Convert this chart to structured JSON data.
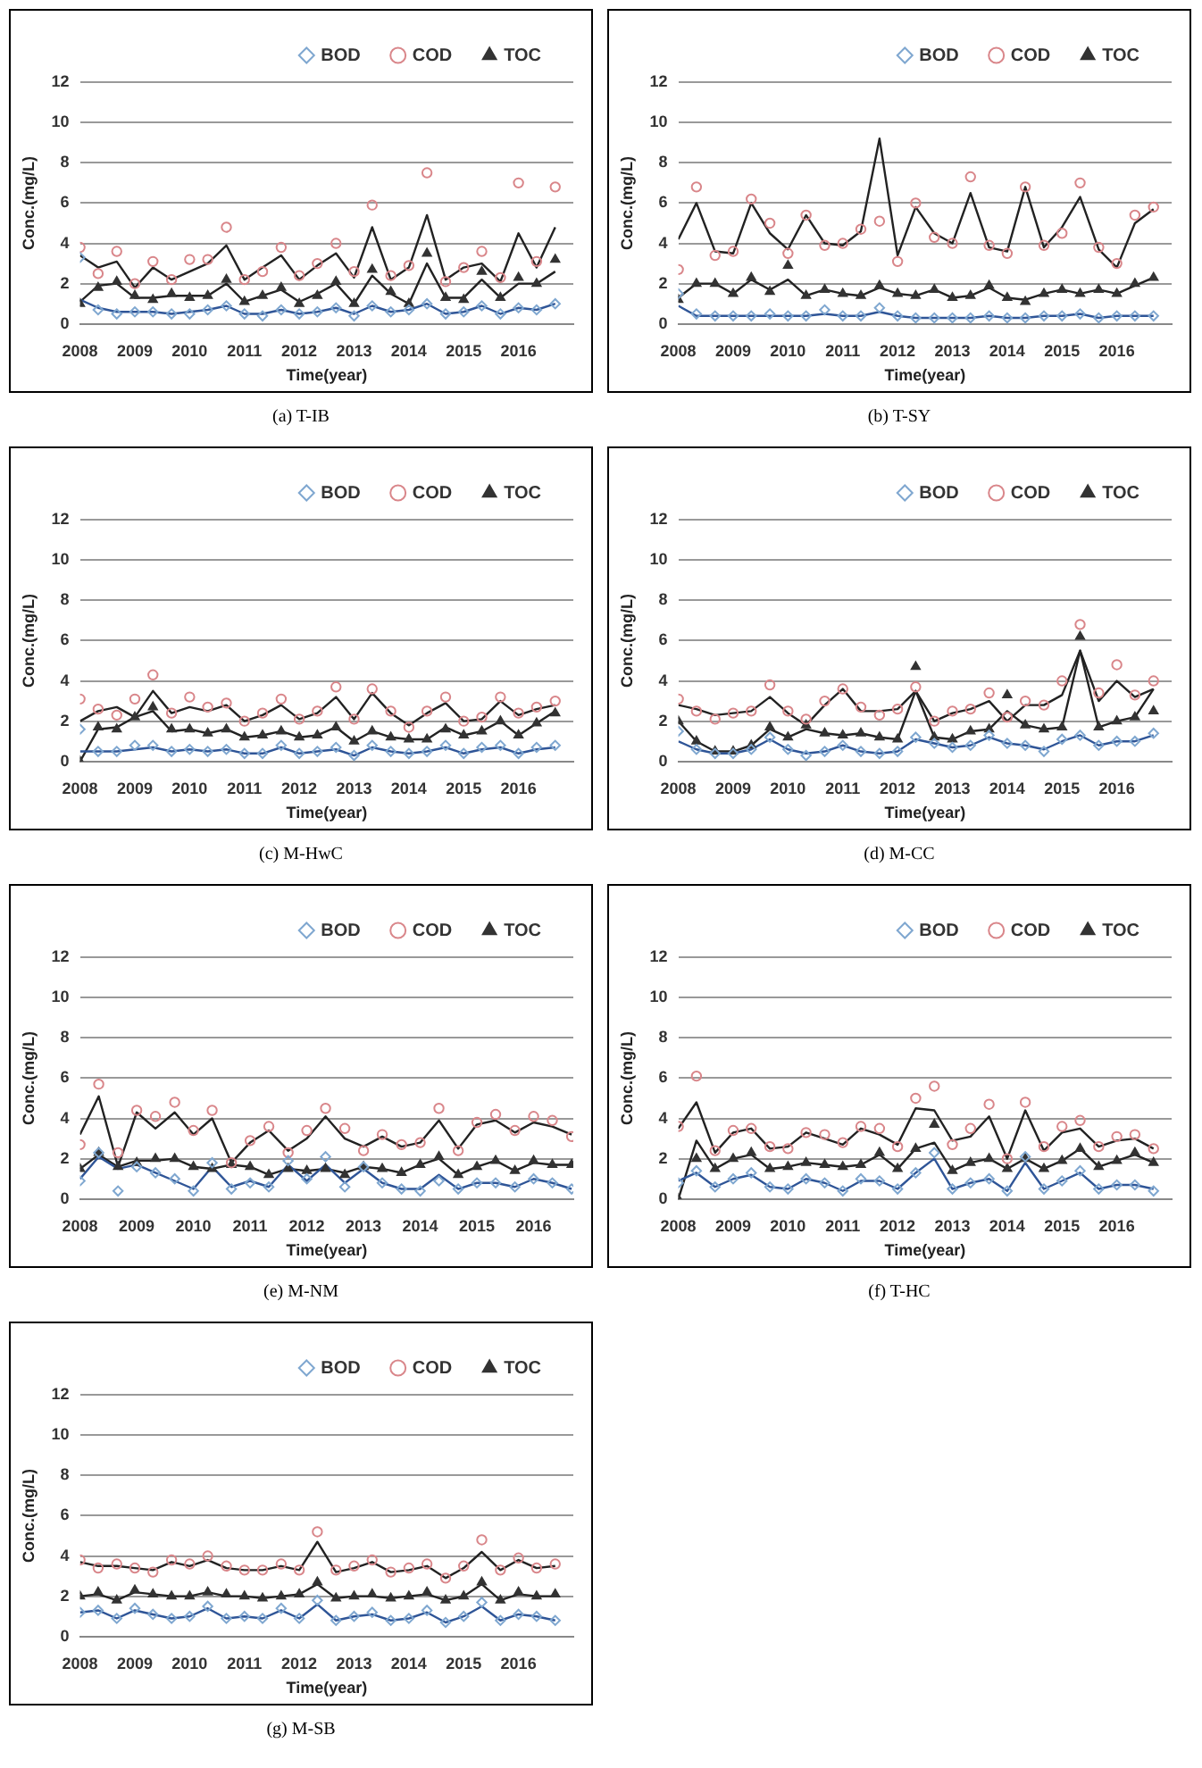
{
  "chart_data": [
    {
      "type": "scatter",
      "title": "(a)  T-IB",
      "xlabel": "Time(year)",
      "ylabel": "Conc.(mg/L)",
      "xlim": [
        2008,
        2017
      ],
      "xticks": [
        2008,
        2009,
        2010,
        2011,
        2012,
        2013,
        2014,
        2015,
        2016
      ],
      "ylim": [
        0,
        12
      ],
      "yticks": [
        0,
        2,
        4,
        6,
        8,
        10,
        12
      ],
      "grid": "y",
      "legend": "top",
      "x": [
        2008,
        2008.33,
        2008.67,
        2009,
        2009.33,
        2009.67,
        2010,
        2010.33,
        2010.67,
        2011,
        2011.33,
        2011.67,
        2012,
        2012.33,
        2012.67,
        2013,
        2013.33,
        2013.67,
        2014,
        2014.33,
        2014.67,
        2015,
        2015.33,
        2015.67,
        2016,
        2016.33,
        2016.67
      ],
      "series": [
        {
          "name": "BOD",
          "type": "scatter",
          "marker": "diamond",
          "color": "#7fa7d0",
          "values": [
            3.3,
            0.7,
            0.5,
            0.6,
            0.6,
            0.5,
            0.5,
            0.7,
            0.9,
            0.5,
            0.4,
            0.7,
            0.5,
            0.6,
            0.8,
            0.4,
            0.9,
            0.6,
            0.7,
            1.0,
            0.5,
            0.6,
            0.9,
            0.5,
            0.8,
            0.7,
            1.0
          ]
        },
        {
          "name": "COD",
          "type": "scatter",
          "marker": "circle",
          "color": "#d9868a",
          "values": [
            3.8,
            2.5,
            3.6,
            2.0,
            3.1,
            2.2,
            3.2,
            3.2,
            4.8,
            2.2,
            2.6,
            3.8,
            2.4,
            3.0,
            4.0,
            2.6,
            5.9,
            2.4,
            2.9,
            7.5,
            2.1,
            2.8,
            3.6,
            2.3,
            7.0,
            3.1,
            6.8
          ]
        },
        {
          "name": "TOC",
          "type": "scatter",
          "marker": "triangle",
          "color": "#333333",
          "values": [
            1.0,
            1.8,
            2.1,
            1.4,
            1.2,
            1.5,
            1.3,
            1.4,
            2.2,
            1.1,
            1.4,
            1.8,
            1.0,
            1.4,
            2.1,
            1.0,
            2.7,
            1.6,
            1.0,
            3.5,
            1.3,
            1.2,
            2.6,
            1.3,
            2.3,
            2.0,
            3.2
          ]
        },
        {
          "type": "line",
          "marker": "none",
          "color": "#2f5597",
          "values": [
            1.2,
            0.8,
            0.6,
            0.6,
            0.6,
            0.5,
            0.6,
            0.7,
            0.9,
            0.5,
            0.5,
            0.7,
            0.5,
            0.6,
            0.8,
            0.5,
            0.9,
            0.6,
            0.7,
            1.0,
            0.5,
            0.6,
            0.9,
            0.5,
            0.8,
            0.7,
            1.0
          ]
        },
        {
          "type": "line",
          "marker": "none",
          "color": "#222222",
          "values": [
            3.4,
            2.8,
            3.1,
            1.8,
            2.8,
            2.2,
            2.6,
            3.0,
            3.9,
            2.2,
            2.8,
            3.4,
            2.2,
            2.9,
            3.5,
            2.3,
            4.8,
            2.2,
            2.8,
            5.4,
            2.2,
            2.8,
            3.0,
            2.1,
            4.5,
            2.8,
            4.8
          ]
        },
        {
          "type": "line",
          "marker": "none",
          "color": "#222222",
          "values": [
            1.1,
            1.9,
            2.0,
            1.3,
            1.3,
            1.4,
            1.4,
            1.4,
            2.0,
            1.1,
            1.4,
            1.7,
            1.1,
            1.5,
            2.0,
            1.0,
            2.4,
            1.5,
            1.0,
            3.0,
            1.3,
            1.3,
            2.2,
            1.3,
            2.0,
            2.0,
            2.6
          ]
        }
      ]
    },
    {
      "type": "scatter",
      "title": "(b)  T-SY",
      "xlabel": "Time(year)",
      "ylabel": "Conc.(mg/L)",
      "xlim": [
        2008,
        2017
      ],
      "xticks": [
        2008,
        2009,
        2010,
        2011,
        2012,
        2013,
        2014,
        2015,
        2016
      ],
      "ylim": [
        0,
        12
      ],
      "yticks": [
        0,
        2,
        4,
        6,
        8,
        10,
        12
      ],
      "grid": "y",
      "legend": "top",
      "x": [
        2008,
        2008.33,
        2008.67,
        2009,
        2009.33,
        2009.67,
        2010,
        2010.33,
        2010.67,
        2011,
        2011.33,
        2011.67,
        2012,
        2012.33,
        2012.67,
        2013,
        2013.33,
        2013.67,
        2014,
        2014.33,
        2014.67,
        2015,
        2015.33,
        2015.67,
        2016,
        2016.33,
        2016.67
      ],
      "series": [
        {
          "name": "BOD",
          "type": "scatter",
          "marker": "diamond",
          "color": "#7fa7d0",
          "values": [
            1.5,
            0.5,
            0.4,
            0.4,
            0.4,
            0.5,
            0.4,
            0.4,
            0.7,
            0.4,
            0.4,
            0.8,
            0.4,
            0.3,
            0.3,
            0.3,
            0.3,
            0.4,
            0.3,
            0.3,
            0.4,
            0.4,
            0.5,
            0.3,
            0.4,
            0.4,
            0.4
          ]
        },
        {
          "name": "COD",
          "type": "scatter",
          "marker": "circle",
          "color": "#d9868a",
          "values": [
            2.7,
            6.8,
            3.4,
            3.6,
            6.2,
            5.0,
            3.5,
            5.4,
            3.9,
            4.0,
            4.7,
            5.1,
            3.1,
            6.0,
            4.3,
            4.0,
            7.3,
            3.9,
            3.5,
            6.8,
            3.9,
            4.5,
            7.0,
            3.8,
            3.0,
            5.4,
            5.8
          ]
        },
        {
          "name": "TOC",
          "type": "scatter",
          "marker": "triangle",
          "color": "#333333",
          "values": [
            1.2,
            2.0,
            2.0,
            1.5,
            2.3,
            1.6,
            2.9,
            1.4,
            1.7,
            1.5,
            1.4,
            1.9,
            1.5,
            1.4,
            1.7,
            1.3,
            1.4,
            1.9,
            1.3,
            1.1,
            1.5,
            1.7,
            1.5,
            1.7,
            1.5,
            2.0,
            2.3
          ]
        },
        {
          "type": "line",
          "marker": "none",
          "color": "#2f5597",
          "values": [
            0.9,
            0.4,
            0.4,
            0.4,
            0.4,
            0.4,
            0.4,
            0.4,
            0.5,
            0.4,
            0.4,
            0.6,
            0.4,
            0.3,
            0.3,
            0.3,
            0.3,
            0.4,
            0.3,
            0.3,
            0.4,
            0.4,
            0.5,
            0.3,
            0.4,
            0.4,
            0.4
          ]
        },
        {
          "type": "line",
          "marker": "none",
          "color": "#222222",
          "values": [
            4.2,
            6.0,
            3.6,
            3.5,
            6.0,
            4.5,
            3.7,
            5.4,
            4.0,
            3.9,
            4.6,
            9.2,
            3.4,
            5.8,
            4.5,
            4.0,
            6.5,
            3.8,
            3.6,
            6.8,
            3.8,
            4.8,
            6.3,
            3.7,
            2.8,
            5.0,
            5.7
          ]
        },
        {
          "type": "line",
          "marker": "none",
          "color": "#222222",
          "values": [
            1.3,
            2.0,
            2.0,
            1.5,
            2.2,
            1.7,
            2.2,
            1.4,
            1.7,
            1.5,
            1.4,
            1.8,
            1.5,
            1.4,
            1.7,
            1.3,
            1.4,
            1.8,
            1.3,
            1.2,
            1.5,
            1.7,
            1.5,
            1.7,
            1.5,
            1.9,
            2.3
          ]
        }
      ]
    },
    {
      "type": "scatter",
      "title": "(c)  M-HwC",
      "xlabel": "Time(year)",
      "ylabel": "Conc.(mg/L)",
      "xlim": [
        2008,
        2017
      ],
      "xticks": [
        2008,
        2009,
        2010,
        2011,
        2012,
        2013,
        2014,
        2015,
        2016
      ],
      "ylim": [
        0,
        12
      ],
      "yticks": [
        0,
        2,
        4,
        6,
        8,
        10,
        12
      ],
      "grid": "y",
      "legend": "top",
      "x": [
        2008,
        2008.33,
        2008.67,
        2009,
        2009.33,
        2009.67,
        2010,
        2010.33,
        2010.67,
        2011,
        2011.33,
        2011.67,
        2012,
        2012.33,
        2012.67,
        2013,
        2013.33,
        2013.67,
        2014,
        2014.33,
        2014.67,
        2015,
        2015.33,
        2015.67,
        2016,
        2016.33,
        2016.67
      ],
      "series": [
        {
          "name": "BOD",
          "type": "scatter",
          "marker": "diamond",
          "color": "#7fa7d0",
          "values": [
            1.6,
            0.5,
            0.5,
            0.8,
            0.8,
            0.5,
            0.6,
            0.5,
            0.6,
            0.4,
            0.4,
            0.8,
            0.4,
            0.5,
            0.7,
            0.3,
            0.8,
            0.5,
            0.4,
            0.5,
            0.8,
            0.4,
            0.7,
            0.8,
            0.4,
            0.7,
            0.8
          ]
        },
        {
          "name": "COD",
          "type": "scatter",
          "marker": "circle",
          "color": "#d9868a",
          "values": [
            3.1,
            2.6,
            2.3,
            3.1,
            4.3,
            2.4,
            3.2,
            2.7,
            2.9,
            2.0,
            2.4,
            3.1,
            2.1,
            2.5,
            3.7,
            2.1,
            3.6,
            2.5,
            1.7,
            2.5,
            3.2,
            2.0,
            2.2,
            3.2,
            2.4,
            2.7,
            3.0
          ]
        },
        {
          "name": "TOC",
          "type": "scatter",
          "marker": "triangle",
          "color": "#333333",
          "values": [
            0,
            1.7,
            1.6,
            2.2,
            2.7,
            1.6,
            1.6,
            1.4,
            1.6,
            1.2,
            1.3,
            1.5,
            1.2,
            1.3,
            1.7,
            1.0,
            1.5,
            1.2,
            1.1,
            1.1,
            1.6,
            1.3,
            1.5,
            2.0,
            1.3,
            1.9,
            2.4
          ]
        },
        {
          "type": "line",
          "marker": "none",
          "color": "#2f5597",
          "values": [
            0.5,
            0.5,
            0.5,
            0.6,
            0.7,
            0.5,
            0.6,
            0.5,
            0.6,
            0.4,
            0.4,
            0.7,
            0.4,
            0.5,
            0.6,
            0.3,
            0.7,
            0.5,
            0.4,
            0.5,
            0.7,
            0.4,
            0.6,
            0.7,
            0.4,
            0.6,
            0.7
          ]
        },
        {
          "type": "line",
          "marker": "none",
          "color": "#222222",
          "values": [
            2.0,
            2.5,
            2.7,
            2.2,
            3.5,
            2.4,
            2.7,
            2.5,
            2.8,
            2.0,
            2.3,
            2.8,
            2.1,
            2.4,
            3.2,
            2.1,
            3.4,
            2.4,
            1.8,
            2.4,
            2.9,
            2.0,
            2.1,
            3.0,
            2.3,
            2.6,
            2.8
          ]
        },
        {
          "type": "line",
          "marker": "none",
          "color": "#222222",
          "values": [
            0,
            1.6,
            1.7,
            2.2,
            2.5,
            1.5,
            1.6,
            1.4,
            1.6,
            1.2,
            1.3,
            1.5,
            1.2,
            1.3,
            1.7,
            1.0,
            1.5,
            1.2,
            1.1,
            1.1,
            1.7,
            1.3,
            1.5,
            2.0,
            1.3,
            1.9,
            2.5
          ]
        }
      ]
    },
    {
      "type": "scatter",
      "title": "(d)  M-CC",
      "xlabel": "Time(year)",
      "ylabel": "Conc.(mg/L)",
      "xlim": [
        2008,
        2017
      ],
      "xticks": [
        2008,
        2009,
        2010,
        2011,
        2012,
        2013,
        2014,
        2015,
        2016
      ],
      "ylim": [
        0,
        12
      ],
      "yticks": [
        0,
        2,
        4,
        6,
        8,
        10,
        12
      ],
      "grid": "y",
      "legend": "top",
      "x": [
        2008,
        2008.33,
        2008.67,
        2009,
        2009.33,
        2009.67,
        2010,
        2010.33,
        2010.67,
        2011,
        2011.33,
        2011.67,
        2012,
        2012.33,
        2012.67,
        2013,
        2013.33,
        2013.67,
        2014,
        2014.33,
        2014.67,
        2015,
        2015.33,
        2015.67,
        2016,
        2016.33,
        2016.67
      ],
      "series": [
        {
          "name": "BOD",
          "type": "scatter",
          "marker": "diamond",
          "color": "#7fa7d0",
          "values": [
            1.5,
            0.6,
            0.4,
            0.4,
            0.6,
            1.2,
            0.6,
            0.3,
            0.5,
            0.8,
            0.5,
            0.4,
            0.5,
            1.2,
            0.9,
            0.7,
            0.8,
            1.3,
            0.9,
            0.8,
            0.5,
            1.1,
            1.3,
            0.8,
            1.0,
            1.0,
            1.4
          ]
        },
        {
          "name": "COD",
          "type": "scatter",
          "marker": "circle",
          "color": "#d9868a",
          "values": [
            3.1,
            2.5,
            2.1,
            2.4,
            2.5,
            3.8,
            2.5,
            2.1,
            3.0,
            3.6,
            2.7,
            2.3,
            2.6,
            3.7,
            2.0,
            2.5,
            2.6,
            3.4,
            2.2,
            3.0,
            2.8,
            4.0,
            6.8,
            3.4,
            4.8,
            3.3,
            4.0
          ]
        },
        {
          "name": "TOC",
          "type": "scatter",
          "marker": "triangle",
          "color": "#333333",
          "values": [
            2.0,
            1.0,
            0.5,
            0.5,
            0.8,
            1.7,
            1.2,
            1.8,
            1.4,
            1.3,
            1.4,
            1.2,
            1.1,
            4.7,
            1.2,
            1.1,
            1.5,
            1.6,
            3.3,
            1.8,
            1.6,
            1.7,
            6.2,
            1.7,
            2.0,
            2.2,
            2.5
          ]
        },
        {
          "type": "line",
          "marker": "none",
          "color": "#2f5597",
          "values": [
            1.0,
            0.6,
            0.4,
            0.4,
            0.6,
            1.1,
            0.6,
            0.4,
            0.5,
            0.8,
            0.5,
            0.4,
            0.5,
            1.1,
            0.9,
            0.7,
            0.8,
            1.2,
            0.9,
            0.8,
            0.6,
            1.0,
            1.3,
            0.8,
            1.0,
            1.0,
            1.3
          ]
        },
        {
          "type": "line",
          "marker": "none",
          "color": "#222222",
          "values": [
            2.8,
            2.6,
            2.3,
            2.4,
            2.5,
            3.2,
            2.4,
            1.8,
            2.8,
            3.6,
            2.5,
            2.5,
            2.6,
            3.5,
            2.0,
            2.4,
            2.6,
            3.0,
            2.0,
            2.8,
            2.8,
            3.3,
            5.5,
            3.0,
            4.0,
            3.2,
            3.6
          ]
        },
        {
          "type": "line",
          "marker": "none",
          "color": "#222222",
          "values": [
            2.0,
            1.0,
            0.5,
            0.5,
            0.8,
            1.6,
            1.2,
            1.6,
            1.4,
            1.3,
            1.4,
            1.2,
            1.1,
            3.5,
            1.2,
            1.1,
            1.5,
            1.6,
            2.5,
            1.8,
            1.6,
            1.7,
            5.5,
            1.7,
            2.0,
            2.2,
            3.6
          ]
        }
      ]
    },
    {
      "type": "scatter",
      "title": "(e)  M-NM",
      "xlabel": "Time(year)",
      "ylabel": "Conc.(mg/L)",
      "xlim": [
        2008,
        2016.7
      ],
      "xticks": [
        2008,
        2009,
        2010,
        2011,
        2012,
        2013,
        2014,
        2015,
        2016
      ],
      "ylim": [
        0,
        12
      ],
      "yticks": [
        0,
        2,
        4,
        6,
        8,
        10,
        12
      ],
      "grid": "y",
      "legend": "top",
      "x": [
        2008,
        2008.33,
        2008.67,
        2009,
        2009.33,
        2009.67,
        2010,
        2010.33,
        2010.67,
        2011,
        2011.33,
        2011.67,
        2012,
        2012.33,
        2012.67,
        2013,
        2013.33,
        2013.67,
        2014,
        2014.33,
        2014.67,
        2015,
        2015.33,
        2015.67,
        2016,
        2016.33,
        2016.67
      ],
      "series": [
        {
          "name": "BOD",
          "type": "scatter",
          "marker": "diamond",
          "color": "#7fa7d0",
          "values": [
            0.9,
            2.3,
            0.4,
            1.6,
            1.3,
            1.0,
            0.4,
            1.8,
            0.5,
            0.8,
            0.6,
            1.9,
            1.0,
            2.1,
            0.6,
            1.6,
            0.8,
            0.5,
            0.4,
            0.9,
            0.5,
            0.8,
            0.8,
            0.6,
            1.0,
            0.8,
            0.5
          ]
        },
        {
          "name": "COD",
          "type": "scatter",
          "marker": "circle",
          "color": "#d9868a",
          "values": [
            2.7,
            5.7,
            2.3,
            4.4,
            4.1,
            4.8,
            3.4,
            4.4,
            1.8,
            2.9,
            3.6,
            2.3,
            3.4,
            4.5,
            3.5,
            2.4,
            3.2,
            2.7,
            2.8,
            4.5,
            2.4,
            3.8,
            4.2,
            3.4,
            4.1,
            3.9,
            3.1
          ]
        },
        {
          "name": "TOC",
          "type": "scatter",
          "marker": "triangle",
          "color": "#333333",
          "values": [
            1.5,
            2.3,
            1.6,
            1.8,
            2.0,
            2.0,
            1.6,
            1.5,
            1.7,
            1.6,
            1.2,
            1.5,
            1.4,
            1.5,
            1.2,
            1.6,
            1.5,
            1.3,
            1.7,
            2.1,
            1.2,
            1.6,
            1.9,
            1.4,
            1.9,
            1.7,
            1.7
          ]
        },
        {
          "type": "line",
          "marker": "none",
          "color": "#2f5597",
          "values": [
            1.0,
            2.1,
            1.5,
            1.7,
            1.3,
            0.9,
            0.5,
            1.6,
            0.6,
            0.9,
            0.6,
            1.7,
            0.9,
            1.7,
            0.8,
            1.5,
            0.8,
            0.5,
            0.5,
            1.2,
            0.5,
            0.8,
            0.8,
            0.6,
            1.0,
            0.8,
            0.5
          ]
        },
        {
          "type": "line",
          "marker": "none",
          "color": "#222222",
          "values": [
            3.2,
            5.1,
            1.6,
            4.3,
            3.5,
            4.3,
            3.2,
            4.0,
            1.8,
            2.8,
            3.4,
            2.4,
            3.0,
            4.1,
            3.0,
            2.6,
            3.1,
            2.6,
            2.8,
            3.9,
            2.5,
            3.7,
            3.9,
            3.3,
            3.8,
            3.6,
            3.2
          ]
        },
        {
          "type": "line",
          "marker": "none",
          "color": "#222222",
          "values": [
            1.5,
            2.2,
            1.6,
            1.9,
            1.9,
            2.0,
            1.6,
            1.5,
            1.7,
            1.6,
            1.2,
            1.5,
            1.4,
            1.5,
            1.3,
            1.6,
            1.5,
            1.3,
            1.7,
            2.0,
            1.2,
            1.6,
            1.9,
            1.4,
            1.8,
            1.7,
            1.7
          ]
        }
      ]
    },
    {
      "type": "scatter",
      "title": "(f)  T-HC",
      "xlabel": "Time(year)",
      "ylabel": "Conc.(mg/L)",
      "xlim": [
        2008,
        2017
      ],
      "xticks": [
        2008,
        2009,
        2010,
        2011,
        2012,
        2013,
        2014,
        2015,
        2016
      ],
      "ylim": [
        0,
        12
      ],
      "yticks": [
        0,
        2,
        4,
        6,
        8,
        10,
        12
      ],
      "grid": "y",
      "legend": "top",
      "x": [
        2008,
        2008.33,
        2008.67,
        2009,
        2009.33,
        2009.67,
        2010,
        2010.33,
        2010.67,
        2011,
        2011.33,
        2011.67,
        2012,
        2012.33,
        2012.67,
        2013,
        2013.33,
        2013.67,
        2014,
        2014.33,
        2014.67,
        2015,
        2015.33,
        2015.67,
        2016,
        2016.33,
        2016.67
      ],
      "series": [
        {
          "name": "BOD",
          "type": "scatter",
          "marker": "diamond",
          "color": "#7fa7d0",
          "values": [
            0.8,
            1.4,
            0.6,
            1.0,
            1.3,
            0.6,
            0.5,
            1.0,
            0.8,
            0.4,
            1.0,
            0.9,
            0.5,
            1.3,
            2.3,
            0.5,
            0.8,
            1.0,
            0.4,
            2.1,
            0.5,
            0.9,
            1.4,
            0.5,
            0.7,
            0.7,
            0.4
          ]
        },
        {
          "name": "COD",
          "type": "scatter",
          "marker": "circle",
          "color": "#d9868a",
          "values": [
            3.6,
            6.1,
            2.4,
            3.4,
            3.5,
            2.6,
            2.5,
            3.3,
            3.2,
            2.8,
            3.6,
            3.5,
            2.6,
            5.0,
            5.6,
            2.7,
            3.5,
            4.7,
            2.0,
            4.8,
            2.6,
            3.6,
            3.9,
            2.6,
            3.1,
            3.2,
            2.5
          ]
        },
        {
          "name": "TOC",
          "type": "scatter",
          "marker": "triangle",
          "color": "#333333",
          "values": [
            0,
            2.0,
            1.5,
            2.0,
            2.3,
            1.5,
            1.6,
            1.8,
            1.7,
            1.6,
            1.7,
            2.3,
            1.5,
            2.5,
            3.7,
            1.4,
            1.8,
            2.0,
            1.5,
            2.0,
            1.5,
            1.9,
            2.5,
            1.6,
            1.9,
            2.3,
            1.8
          ]
        },
        {
          "type": "line",
          "marker": "none",
          "color": "#2f5597",
          "values": [
            0.9,
            1.3,
            0.6,
            1.0,
            1.2,
            0.6,
            0.5,
            1.0,
            0.8,
            0.4,
            0.9,
            0.9,
            0.5,
            1.3,
            2.0,
            0.5,
            0.8,
            1.0,
            0.4,
            1.8,
            0.5,
            0.9,
            1.3,
            0.5,
            0.7,
            0.7,
            0.5
          ]
        },
        {
          "type": "line",
          "marker": "none",
          "color": "#222222",
          "values": [
            3.5,
            4.8,
            2.3,
            3.3,
            3.5,
            2.5,
            2.6,
            3.3,
            3.0,
            2.7,
            3.5,
            3.2,
            2.7,
            4.5,
            4.4,
            2.9,
            3.1,
            4.1,
            2.0,
            4.4,
            2.4,
            3.3,
            3.5,
            2.6,
            2.9,
            3.0,
            2.5
          ]
        },
        {
          "type": "line",
          "marker": "none",
          "color": "#222222",
          "values": [
            0,
            2.9,
            1.5,
            2.0,
            2.2,
            1.5,
            1.6,
            1.8,
            1.7,
            1.6,
            1.7,
            2.2,
            1.5,
            2.5,
            2.8,
            1.4,
            1.8,
            2.0,
            1.5,
            2.0,
            1.5,
            1.9,
            2.5,
            1.6,
            1.9,
            2.2,
            1.8
          ]
        }
      ]
    },
    {
      "type": "scatter",
      "title": "(g)  M-SB",
      "xlabel": "Time(year)",
      "ylabel": "Conc.(mg/L)",
      "xlim": [
        2008,
        2017
      ],
      "xticks": [
        2008,
        2009,
        2010,
        2011,
        2012,
        2013,
        2014,
        2015,
        2016
      ],
      "ylim": [
        0,
        12
      ],
      "yticks": [
        0,
        2,
        4,
        6,
        8,
        10,
        12
      ],
      "grid": "y",
      "legend": "top",
      "x": [
        2008,
        2008.33,
        2008.67,
        2009,
        2009.33,
        2009.67,
        2010,
        2010.33,
        2010.67,
        2011,
        2011.33,
        2011.67,
        2012,
        2012.33,
        2012.67,
        2013,
        2013.33,
        2013.67,
        2014,
        2014.33,
        2014.67,
        2015,
        2015.33,
        2015.67,
        2016,
        2016.33,
        2016.67
      ],
      "series": [
        {
          "name": "BOD",
          "type": "scatter",
          "marker": "diamond",
          "color": "#7fa7d0",
          "values": [
            1.2,
            1.3,
            0.9,
            1.4,
            1.1,
            0.9,
            1.0,
            1.5,
            0.9,
            1.0,
            0.9,
            1.4,
            0.9,
            1.8,
            0.8,
            1.0,
            1.2,
            0.8,
            0.9,
            1.3,
            0.7,
            1.0,
            1.7,
            0.8,
            1.1,
            1.0,
            0.8
          ]
        },
        {
          "name": "COD",
          "type": "scatter",
          "marker": "circle",
          "color": "#d9868a",
          "values": [
            3.8,
            3.4,
            3.6,
            3.4,
            3.2,
            3.8,
            3.6,
            4.0,
            3.5,
            3.3,
            3.3,
            3.6,
            3.3,
            5.2,
            3.3,
            3.5,
            3.8,
            3.2,
            3.4,
            3.6,
            2.9,
            3.5,
            4.8,
            3.3,
            3.9,
            3.4,
            3.6
          ]
        },
        {
          "name": "TOC",
          "type": "scatter",
          "marker": "triangle",
          "color": "#333333",
          "values": [
            2.0,
            2.2,
            1.8,
            2.3,
            2.1,
            2.0,
            2.0,
            2.2,
            2.1,
            2.0,
            1.9,
            2.0,
            2.1,
            2.7,
            1.9,
            2.0,
            2.1,
            1.9,
            2.0,
            2.2,
            1.8,
            2.0,
            2.7,
            1.8,
            2.2,
            2.0,
            2.1
          ]
        },
        {
          "type": "line",
          "marker": "none",
          "color": "#2f5597",
          "values": [
            1.2,
            1.3,
            0.9,
            1.3,
            1.1,
            0.9,
            1.0,
            1.4,
            0.9,
            1.0,
            0.9,
            1.3,
            0.9,
            1.6,
            0.8,
            1.0,
            1.1,
            0.8,
            0.9,
            1.2,
            0.7,
            1.0,
            1.5,
            0.8,
            1.1,
            1.0,
            0.8
          ]
        },
        {
          "type": "line",
          "marker": "none",
          "color": "#222222",
          "values": [
            3.7,
            3.5,
            3.5,
            3.4,
            3.3,
            3.7,
            3.5,
            3.8,
            3.4,
            3.3,
            3.3,
            3.5,
            3.3,
            4.7,
            3.2,
            3.4,
            3.7,
            3.2,
            3.3,
            3.5,
            2.9,
            3.4,
            4.2,
            3.3,
            3.8,
            3.4,
            3.5
          ]
        },
        {
          "type": "line",
          "marker": "none",
          "color": "#222222",
          "values": [
            2.0,
            2.1,
            1.8,
            2.2,
            2.1,
            2.0,
            2.0,
            2.2,
            2.0,
            2.0,
            1.9,
            2.0,
            2.1,
            2.6,
            1.9,
            2.0,
            2.0,
            1.9,
            2.0,
            2.1,
            1.8,
            2.0,
            2.6,
            1.8,
            2.1,
            2.0,
            2.0
          ]
        }
      ]
    }
  ]
}
